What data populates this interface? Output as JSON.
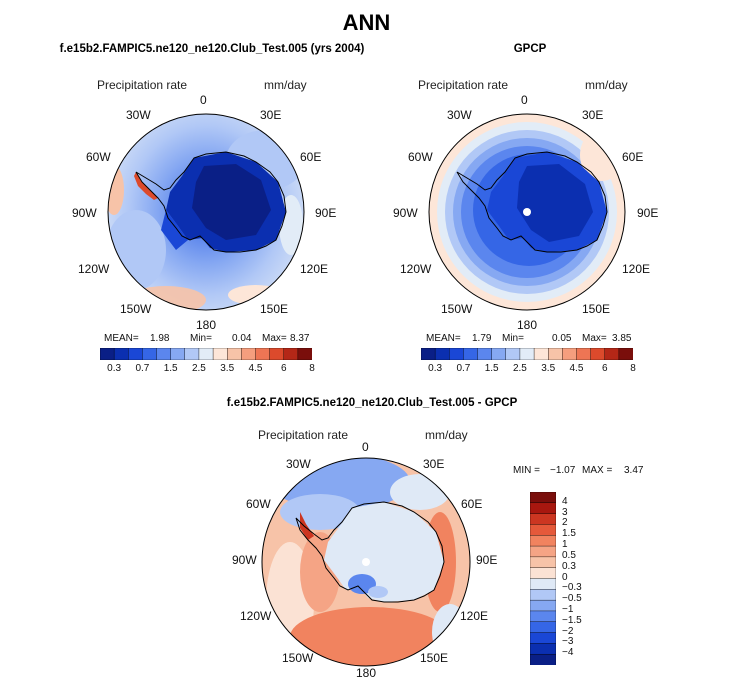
{
  "title": "ANN",
  "colors": {
    "abs_levels": [
      "#0a1f86",
      "#0b2fb0",
      "#1a47d6",
      "#3566e6",
      "#5b86ee",
      "#86a8f2",
      "#b1c8f6",
      "#e2ecf7",
      "#fde6d8",
      "#f7c3a8",
      "#f59e7e",
      "#ee7554",
      "#dc4a2c",
      "#b42717",
      "#7a0e0b"
    ],
    "diff_levels": [
      "#0a1f86",
      "#0b2fb0",
      "#1a47d6",
      "#3566e6",
      "#5b86ee",
      "#86a8f2",
      "#b1c8f6",
      "#dfe9f6",
      "#fbe2d4",
      "#f7c3a8",
      "#f5a485",
      "#f1835f",
      "#e5593a",
      "#cc3621",
      "#a8170f",
      "#7a0e0b"
    ],
    "land_outline": "#000000"
  },
  "panels": [
    {
      "title": "f.e15b2.FAMPIC5.ne120_ne120.Club_Test.005 (yrs 2004)",
      "field_label": "Precipitation rate",
      "units": "mm/day",
      "stats": {
        "mean_label": "MEAN=",
        "mean": "1.98",
        "min_label": "Min=",
        "min": "0.04",
        "max_label": "Max=",
        "max": "8.37"
      }
    },
    {
      "title": "GPCP",
      "field_label": "Precipitation rate",
      "units": "mm/day",
      "stats": {
        "mean_label": "MEAN=",
        "mean": "1.79",
        "min_label": "Min=",
        "min": "0.05",
        "max_label": "Max=",
        "max": "3.85"
      }
    },
    {
      "title": "f.e15b2.FAMPIC5.ne120_ne120.Club_Test.005 - GPCP",
      "field_label": "Precipitation rate",
      "units": "mm/day",
      "stats": {
        "min_label": "MIN =",
        "min": "−1.07",
        "max_label": "MAX =",
        "max": "3.47"
      }
    }
  ],
  "longitude_labels": [
    "0",
    "30E",
    "60E",
    "90E",
    "120E",
    "150E",
    "180",
    "150W",
    "120W",
    "90W",
    "60W",
    "30W"
  ],
  "chart_data": [
    {
      "type": "heatmap",
      "projection": "south-polar-stereographic",
      "title": "f.e15b2.FAMPIC5.ne120_ne120.Club_Test.005 (yrs 2004)",
      "variable": "Precipitation rate",
      "units": "mm/day",
      "mean": 1.98,
      "min": 0.04,
      "max": 8.37,
      "colorbar_ticks": [
        "0.3",
        "0.7",
        "1.5",
        "2.5",
        "3.5",
        "4.5",
        "6",
        "8"
      ],
      "colorbar_orientation": "horizontal"
    },
    {
      "type": "heatmap",
      "projection": "south-polar-stereographic",
      "title": "GPCP",
      "variable": "Precipitation rate",
      "units": "mm/day",
      "mean": 1.79,
      "min": 0.05,
      "max": 3.85,
      "colorbar_ticks": [
        "0.3",
        "0.7",
        "1.5",
        "2.5",
        "3.5",
        "4.5",
        "6",
        "8"
      ],
      "colorbar_orientation": "horizontal"
    },
    {
      "type": "heatmap",
      "projection": "south-polar-stereographic",
      "title": "f.e15b2.FAMPIC5.ne120_ne120.Club_Test.005 - GPCP",
      "variable": "Precipitation rate",
      "units": "mm/day",
      "min": -1.07,
      "max": 3.47,
      "colorbar_ticks": [
        "4",
        "3",
        "2",
        "1.5",
        "1",
        "0.5",
        "0.3",
        "0",
        "−0.3",
        "−0.5",
        "−1",
        "−1.5",
        "−2",
        "−3",
        "−4"
      ],
      "colorbar_orientation": "vertical"
    }
  ]
}
